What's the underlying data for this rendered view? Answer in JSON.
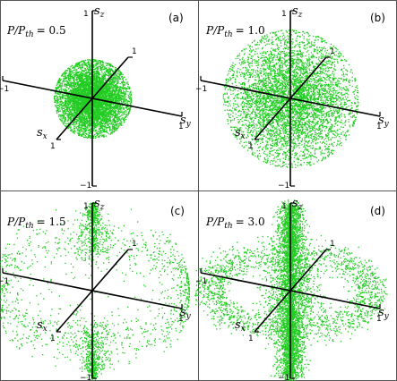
{
  "chart_data": [
    {
      "type": "scatter",
      "panel": "(a)",
      "ratio_label": "P/P",
      "ratio_sub": "th",
      "ratio_value": "= 0.5",
      "axes": [
        "s_x",
        "s_y",
        "s_z"
      ],
      "axis_letter": "s",
      "axis_subs": {
        "x": "x",
        "y": "y",
        "z": "z"
      },
      "ticks": {
        "pos": "1",
        "neg": "−1"
      },
      "distribution": "isotropic cloud",
      "cloud_radius": 0.4,
      "point_color": "#22cc22"
    },
    {
      "type": "scatter",
      "panel": "(b)",
      "ratio_label": "P/P",
      "ratio_sub": "th",
      "ratio_value": "= 1.0",
      "axes": [
        "s_x",
        "s_y",
        "s_z"
      ],
      "axis_letter": "s",
      "axis_subs": {
        "x": "x",
        "y": "y",
        "z": "z"
      },
      "ticks": {
        "pos": "1",
        "neg": "−1"
      },
      "distribution": "isotropic cloud",
      "cloud_radius": 0.7,
      "point_color": "#22cc22"
    },
    {
      "type": "scatter",
      "panel": "(c)",
      "ratio_label": "P/P",
      "ratio_sub": "th",
      "ratio_value": "= 1.5",
      "axes": [
        "s_x",
        "s_y",
        "s_z"
      ],
      "axis_letter": "s",
      "axis_subs": {
        "x": "x",
        "y": "y",
        "z": "z"
      },
      "ticks": {
        "pos": "1",
        "neg": "−1"
      },
      "distribution": "equatorial ring plus polar caps",
      "point_color": "#22cc22"
    },
    {
      "type": "scatter",
      "panel": "(d)",
      "ratio_label": "P/P",
      "ratio_sub": "th",
      "ratio_value": "= 3.0",
      "axes": [
        "s_x",
        "s_y",
        "s_z"
      ],
      "axis_letter": "s",
      "axis_subs": {
        "x": "x",
        "y": "y",
        "z": "z"
      },
      "ticks": {
        "pos": "1",
        "neg": "−1"
      },
      "distribution": "sparse equatorial ring plus dense polar spike",
      "point_color": "#22cc22"
    }
  ]
}
